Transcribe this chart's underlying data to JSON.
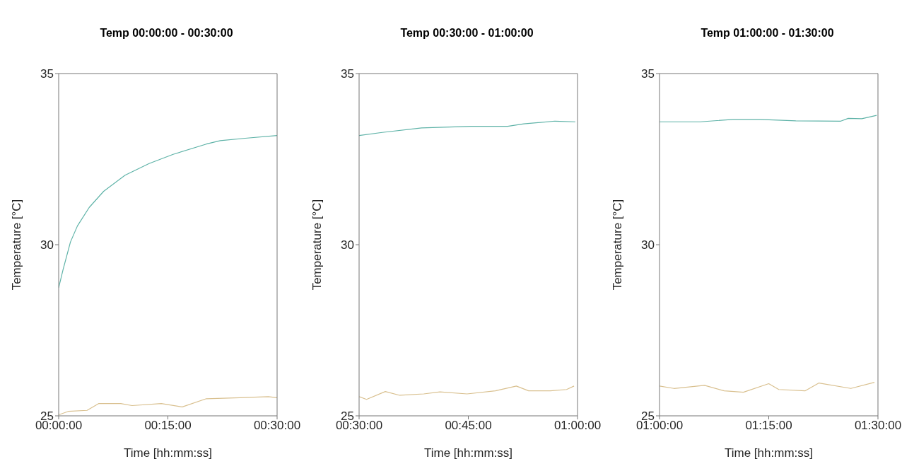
{
  "chart_data": [
    {
      "type": "line",
      "title": "Temp 00:00:00 - 00:30:00",
      "xlabel": "Time [hh:mm:ss]",
      "ylabel": "Temperature [°C]",
      "xlim": [
        0,
        0.5
      ],
      "xticks": [
        {
          "value": 0,
          "label": "00:00:00"
        },
        {
          "value": 0.25,
          "label": "00:15:00"
        },
        {
          "value": 0.5,
          "label": "00:30:00"
        }
      ],
      "ylim": [
        25,
        35
      ],
      "yticks": [
        25,
        30,
        35
      ],
      "grid": false,
      "marker": "none",
      "line_style": "solid",
      "series": [
        {
          "color": "#5fb3a8",
          "x": [
            0,
            0.01,
            0.027,
            0.043,
            0.07,
            0.103,
            0.152,
            0.207,
            0.262,
            0.338,
            0.37,
            0.427,
            0.5
          ],
          "values": [
            28.74,
            29.27,
            30.08,
            30.55,
            31.09,
            31.56,
            32.03,
            32.37,
            32.64,
            32.94,
            33.04,
            33.11,
            33.19
          ]
        },
        {
          "color": "#d9c08f",
          "x": [
            0,
            0.022,
            0.065,
            0.092,
            0.142,
            0.168,
            0.235,
            0.283,
            0.338,
            0.415,
            0.48,
            0.5
          ],
          "values": [
            25.03,
            25.13,
            25.16,
            25.36,
            25.36,
            25.3,
            25.36,
            25.26,
            25.5,
            25.53,
            25.56,
            25.53
          ]
        }
      ]
    },
    {
      "type": "line",
      "title": "Temp 00:30:00 - 01:00:00",
      "xlabel": "Time [hh:mm:ss]",
      "ylabel": "Temperature [°C]",
      "xlim": [
        0.5,
        1
      ],
      "xticks": [
        {
          "value": 0.5,
          "label": "00:30:00"
        },
        {
          "value": 0.75,
          "label": "00:45:00"
        },
        {
          "value": 1,
          "label": "01:00:00"
        }
      ],
      "ylim": [
        25,
        35
      ],
      "yticks": [
        25,
        30,
        35
      ],
      "grid": false,
      "marker": "none",
      "line_style": "solid",
      "series": [
        {
          "color": "#5fb3a8",
          "x": [
            0.5,
            0.553,
            0.643,
            0.757,
            0.84,
            0.877,
            0.948,
            0.995
          ],
          "values": [
            33.19,
            33.28,
            33.41,
            33.46,
            33.46,
            33.53,
            33.61,
            33.59
          ]
        },
        {
          "color": "#d9c08f",
          "x": [
            0.5,
            0.517,
            0.56,
            0.593,
            0.648,
            0.685,
            0.747,
            0.812,
            0.86,
            0.888,
            0.938,
            0.975,
            0.992
          ],
          "values": [
            25.56,
            25.48,
            25.71,
            25.6,
            25.64,
            25.7,
            25.64,
            25.73,
            25.87,
            25.73,
            25.73,
            25.77,
            25.87
          ]
        }
      ]
    },
    {
      "type": "line",
      "title": "Temp 01:00:00 - 01:30:00",
      "xlabel": "Time [hh:mm:ss]",
      "ylabel": "Temperature [°C]",
      "xlim": [
        1,
        1.5
      ],
      "xticks": [
        {
          "value": 1,
          "label": "01:00:00"
        },
        {
          "value": 1.25,
          "label": "01:15:00"
        },
        {
          "value": 1.5,
          "label": "01:30:00"
        }
      ],
      "ylim": [
        25,
        35
      ],
      "yticks": [
        25,
        30,
        35
      ],
      "grid": false,
      "marker": "none",
      "line_style": "solid",
      "series": [
        {
          "color": "#5fb3a8",
          "x": [
            1,
            1.093,
            1.168,
            1.23,
            1.312,
            1.415,
            1.432,
            1.463,
            1.497
          ],
          "values": [
            33.59,
            33.59,
            33.66,
            33.66,
            33.62,
            33.61,
            33.69,
            33.68,
            33.78
          ]
        },
        {
          "color": "#d9c08f",
          "x": [
            1,
            1.033,
            1.103,
            1.148,
            1.192,
            1.25,
            1.273,
            1.333,
            1.365,
            1.438,
            1.492
          ],
          "values": [
            25.87,
            25.8,
            25.89,
            25.73,
            25.69,
            25.94,
            25.77,
            25.73,
            25.96,
            25.8,
            25.98
          ]
        }
      ]
    }
  ]
}
